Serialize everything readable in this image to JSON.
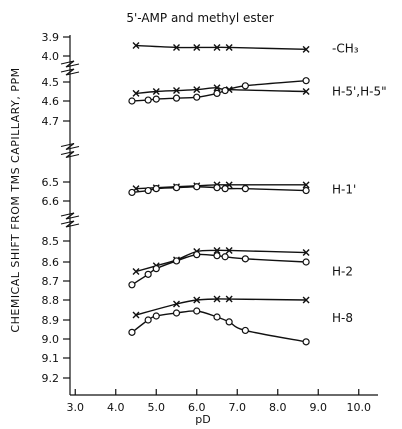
{
  "chart_data": {
    "type": "line",
    "title": "5'-AMP and methyl ester",
    "xlabel": "pD",
    "ylabel": "CHEMICAL SHIFT FROM TMS CAPILLARY, PPM",
    "xlim": [
      2.5,
      10.0
    ],
    "x_ticks": [
      "3.0",
      "4.0",
      "5.0",
      "6.0",
      "7.0",
      "8.0",
      "9.0",
      "10.0"
    ],
    "y_ticks": [
      "3.9",
      "4.0",
      "4.5",
      "4.6",
      "4.7",
      "6.5",
      "6.6",
      "8.5",
      "8.6",
      "8.7",
      "8.8",
      "8.9",
      "9.0",
      "9.1",
      "9.2"
    ],
    "axis_breaks": [
      [
        4.0,
        4.5
      ],
      [
        4.7,
        6.5
      ],
      [
        6.6,
        8.5
      ]
    ],
    "grid": false,
    "series_labels": [
      {
        "text": "-CH₃",
        "y": 3.96
      },
      {
        "text": "H-5',H-5\"",
        "y": 4.55
      },
      {
        "text": "H-1'",
        "y": 6.54
      },
      {
        "text": "H-2",
        "y": 8.65
      },
      {
        "text": "H-8",
        "y": 8.89
      }
    ],
    "series": [
      {
        "group": "-CH3",
        "marker": "x",
        "x": [
          4.5,
          5.5,
          6.0,
          6.5,
          6.8,
          8.7
        ],
        "y": [
          3.945,
          3.955,
          3.955,
          3.955,
          3.955,
          3.965
        ]
      },
      {
        "group": "H-5',H-5\"",
        "marker": "x",
        "x": [
          4.5,
          5.0,
          5.5,
          6.0,
          6.5,
          6.8,
          8.7
        ],
        "y": [
          4.56,
          4.55,
          4.545,
          4.54,
          4.53,
          4.54,
          4.55
        ]
      },
      {
        "group": "H-5',H-5\"",
        "marker": "o",
        "x": [
          4.4,
          4.8,
          5.0,
          5.5,
          6.0,
          6.5,
          6.7,
          7.2,
          8.7
        ],
        "y": [
          4.6,
          4.595,
          4.59,
          4.585,
          4.58,
          4.56,
          4.545,
          4.52,
          4.475
        ]
      },
      {
        "group": "H-1'",
        "marker": "x",
        "x": [
          4.5,
          5.0,
          5.5,
          6.0,
          6.5,
          6.8,
          8.7
        ],
        "y": [
          6.535,
          6.53,
          6.525,
          6.52,
          6.515,
          6.515,
          6.515
        ]
      },
      {
        "group": "H-1'",
        "marker": "o",
        "x": [
          4.4,
          4.8,
          5.0,
          5.5,
          6.0,
          6.5,
          6.7,
          7.2,
          8.7
        ],
        "y": [
          6.555,
          6.545,
          6.535,
          6.53,
          6.525,
          6.53,
          6.535,
          6.535,
          6.545
        ]
      },
      {
        "group": "H-2",
        "marker": "x",
        "x": [
          4.5,
          5.0,
          5.5,
          6.0,
          6.5,
          6.8,
          8.7
        ],
        "y": [
          8.65,
          8.62,
          8.59,
          8.55,
          8.545,
          8.545,
          8.555
        ]
      },
      {
        "group": "H-2",
        "marker": "o",
        "x": [
          4.4,
          4.8,
          5.0,
          5.5,
          6.0,
          6.5,
          6.7,
          7.2,
          8.7
        ],
        "y": [
          8.72,
          8.665,
          8.635,
          8.595,
          8.565,
          8.57,
          8.575,
          8.585,
          8.6
        ]
      },
      {
        "group": "H-8",
        "marker": "x",
        "x": [
          4.5,
          5.5,
          6.0,
          6.5,
          6.8,
          8.7
        ],
        "y": [
          8.875,
          8.82,
          8.8,
          8.795,
          8.795,
          8.8
        ]
      },
      {
        "group": "H-8",
        "marker": "o",
        "x": [
          4.4,
          4.8,
          5.0,
          5.5,
          6.0,
          6.5,
          6.8,
          7.2,
          8.7
        ],
        "y": [
          8.965,
          8.9,
          8.88,
          8.865,
          8.855,
          8.885,
          8.91,
          8.955,
          9.015
        ]
      }
    ]
  }
}
